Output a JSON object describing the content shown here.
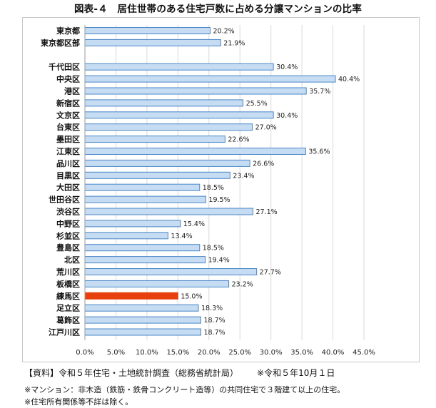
{
  "title": "図表-４　居住世帯のある住宅戸数に占める分譲マンションの比率",
  "notes": {
    "source": "【資料】令和５年住宅・土地統計調査（総務省統計局）",
    "date_note": "※令和５年10月１日",
    "definition": "※マンション：非木造（鉄筋・鉄骨コンクリート造等）の共同住宅で３階建て以上の住宅。",
    "exclusion": "※住宅所有関係等不詳は除く。"
  },
  "chart_data": {
    "type": "bar",
    "orientation": "horizontal",
    "title": "図表-４　居住世帯のある住宅戸数に占める分譲マンションの比率",
    "unit": "%",
    "xlim": [
      0,
      45
    ],
    "xticks": [
      "0.0%",
      "5.0%",
      "10.0%",
      "15.0%",
      "20.0%",
      "25.0%",
      "30.0%",
      "35.0%",
      "40.0%",
      "45.0%"
    ],
    "grid": true,
    "colors": {
      "bar_fill": "#c5dcf2",
      "bar_stroke": "#4a86c7",
      "highlight_fill": "#e8400c",
      "grid": "#d9d9d9"
    },
    "highlight": "練馬区",
    "categories": [
      "東京都",
      "東京都区部",
      "",
      "千代田区",
      "中央区",
      "港区",
      "新宿区",
      "文京区",
      "台東区",
      "墨田区",
      "江東区",
      "品川区",
      "目黒区",
      "大田区",
      "世田谷区",
      "渋谷区",
      "中野区",
      "杉並区",
      "豊島区",
      "北区",
      "荒川区",
      "板橋区",
      "練馬区",
      "足立区",
      "葛飾区",
      "江戸川区"
    ],
    "values": [
      20.2,
      21.9,
      null,
      30.4,
      40.4,
      35.7,
      25.5,
      30.4,
      27.0,
      22.6,
      35.6,
      26.6,
      23.4,
      18.5,
      19.5,
      27.1,
      15.4,
      13.4,
      18.5,
      19.4,
      27.7,
      23.2,
      15.0,
      18.3,
      18.7,
      18.7
    ],
    "value_labels": [
      "20.2%",
      "21.9%",
      "",
      "30.4%",
      "40.4%",
      "35.7%",
      "25.5%",
      "30.4%",
      "27.0%",
      "22.6%",
      "35.6%",
      "26.6%",
      "23.4%",
      "18.5%",
      "19.5%",
      "27.1%",
      "15.4%",
      "13.4%",
      "18.5%",
      "19.4%",
      "27.7%",
      "23.2%",
      "15.0%",
      "18.3%",
      "18.7%",
      "18.7%"
    ]
  }
}
